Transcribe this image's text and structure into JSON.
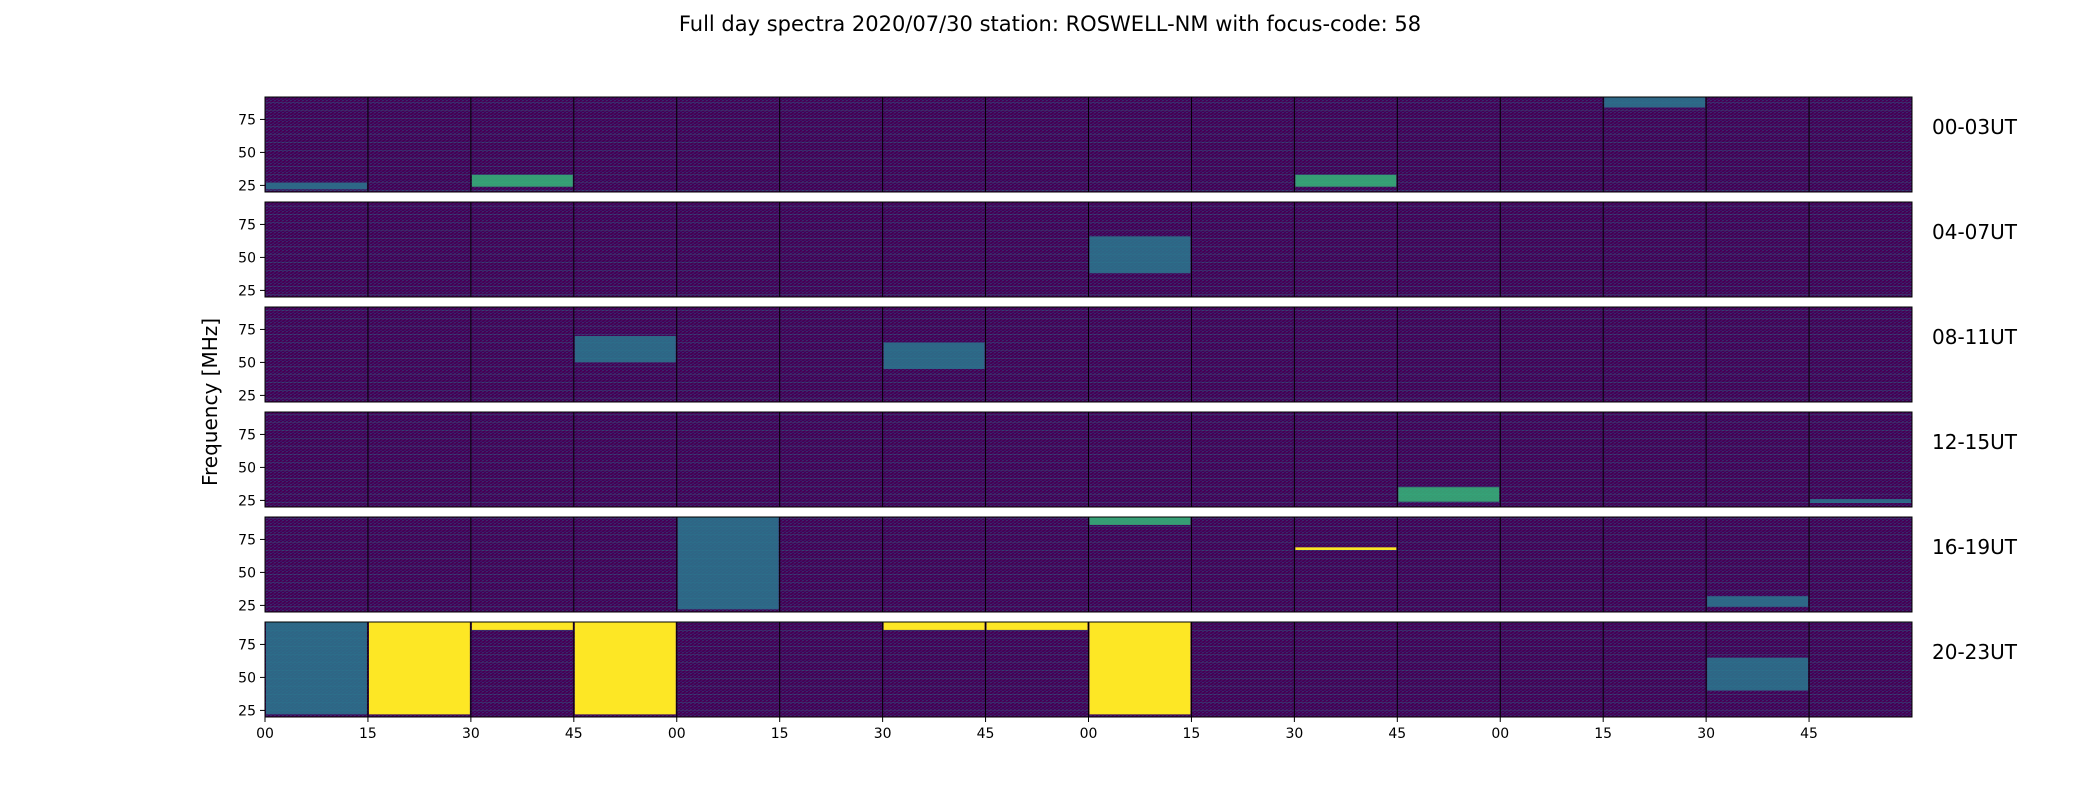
{
  "chart_data": {
    "type": "heatmap",
    "title": "Full day spectra 2020/07/30 station: ROSWELL-NM with focus-code: 58",
    "ylabel": "Frequency [MHz]",
    "xlabel": "",
    "yticks": [
      25,
      50,
      75
    ],
    "ylim": [
      20,
      92
    ],
    "x_tick_labels": [
      "00",
      "15",
      "30",
      "45",
      "00",
      "15",
      "30",
      "45",
      "00",
      "15",
      "30",
      "45",
      "00",
      "15",
      "30",
      "45"
    ],
    "colormap": "viridis",
    "colors": {
      "low": "#440154",
      "mid": "#2a788e",
      "high_mid": "#35b779",
      "high": "#fde725"
    },
    "panels_per_row": 16,
    "rows": [
      {
        "label": "00-03UT",
        "events": [
          {
            "panel": 0,
            "fmin": 22,
            "fmax": 27,
            "intensity": 0.55
          },
          {
            "panel": 2,
            "fmin": 24,
            "fmax": 33,
            "intensity": 0.75
          },
          {
            "panel": 10,
            "fmin": 24,
            "fmax": 33,
            "intensity": 0.6
          },
          {
            "panel": 13,
            "fmin": 84,
            "fmax": 92,
            "intensity": 0.3
          }
        ]
      },
      {
        "label": "04-07UT",
        "events": [
          {
            "panel": 8,
            "fmin": 38,
            "fmax": 66,
            "intensity": 0.35
          }
        ]
      },
      {
        "label": "08-11UT",
        "events": [
          {
            "panel": 3,
            "fmin": 50,
            "fmax": 70,
            "intensity": 0.3
          },
          {
            "panel": 6,
            "fmin": 45,
            "fmax": 65,
            "intensity": 0.35
          }
        ]
      },
      {
        "label": "12-15UT",
        "events": [
          {
            "panel": 11,
            "fmin": 24,
            "fmax": 35,
            "intensity": 0.6
          },
          {
            "panel": 15,
            "fmin": 23,
            "fmax": 26,
            "intensity": 0.45
          }
        ]
      },
      {
        "label": "16-19UT",
        "events": [
          {
            "panel": 4,
            "fmin": 22,
            "fmax": 92,
            "intensity": 0.3
          },
          {
            "panel": 8,
            "fmin": 86,
            "fmax": 92,
            "intensity": 0.8
          },
          {
            "panel": 10,
            "fmin": 67,
            "fmax": 69,
            "intensity": 0.9
          },
          {
            "panel": 14,
            "fmin": 24,
            "fmax": 32,
            "intensity": 0.4
          }
        ]
      },
      {
        "label": "20-23UT",
        "events": [
          {
            "panel": 0,
            "fmin": 22,
            "fmax": 92,
            "intensity": 0.35
          },
          {
            "panel": 1,
            "fmin": 22,
            "fmax": 92,
            "intensity": 1.0
          },
          {
            "panel": 2,
            "fmin": 86,
            "fmax": 92,
            "intensity": 1.0
          },
          {
            "panel": 3,
            "fmin": 22,
            "fmax": 92,
            "intensity": 1.0
          },
          {
            "panel": 6,
            "fmin": 86,
            "fmax": 92,
            "intensity": 1.0
          },
          {
            "panel": 7,
            "fmin": 86,
            "fmax": 92,
            "intensity": 1.0
          },
          {
            "panel": 8,
            "fmin": 22,
            "fmax": 92,
            "intensity": 1.0
          },
          {
            "panel": 14,
            "fmin": 40,
            "fmax": 65,
            "intensity": 0.4
          }
        ]
      }
    ]
  }
}
